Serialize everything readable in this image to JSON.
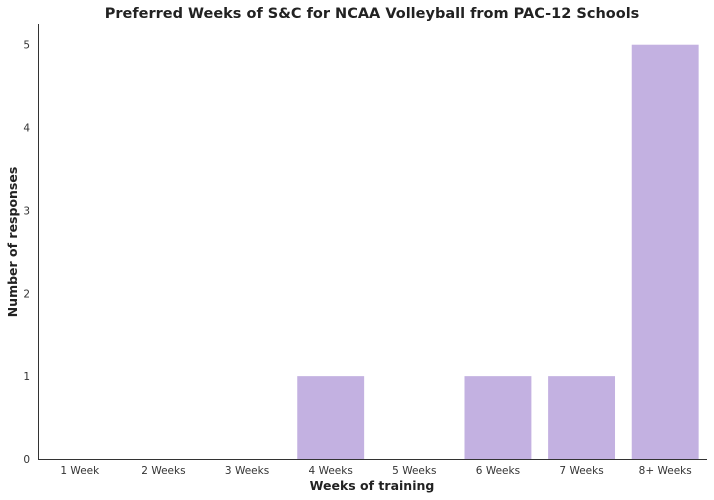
{
  "chart_data": {
    "type": "bar",
    "title": "Preferred Weeks of S&C for NCAA Volleyball from PAC-12 Schools",
    "xlabel": "Weeks of training",
    "ylabel": "Number of responses",
    "categories": [
      "1 Week",
      "2 Weeks",
      "3 Weeks",
      "4 Weeks",
      "5 Weeks",
      "6 Weeks",
      "7 Weeks",
      "8+ Weeks"
    ],
    "values": [
      0,
      0,
      0,
      1,
      0,
      1,
      1,
      5
    ],
    "ylim": [
      0,
      5.25
    ],
    "yticks": [
      0,
      1,
      2,
      3,
      4,
      5
    ],
    "bar_color": "#c3b1e1",
    "grid": false,
    "legend": "none"
  }
}
